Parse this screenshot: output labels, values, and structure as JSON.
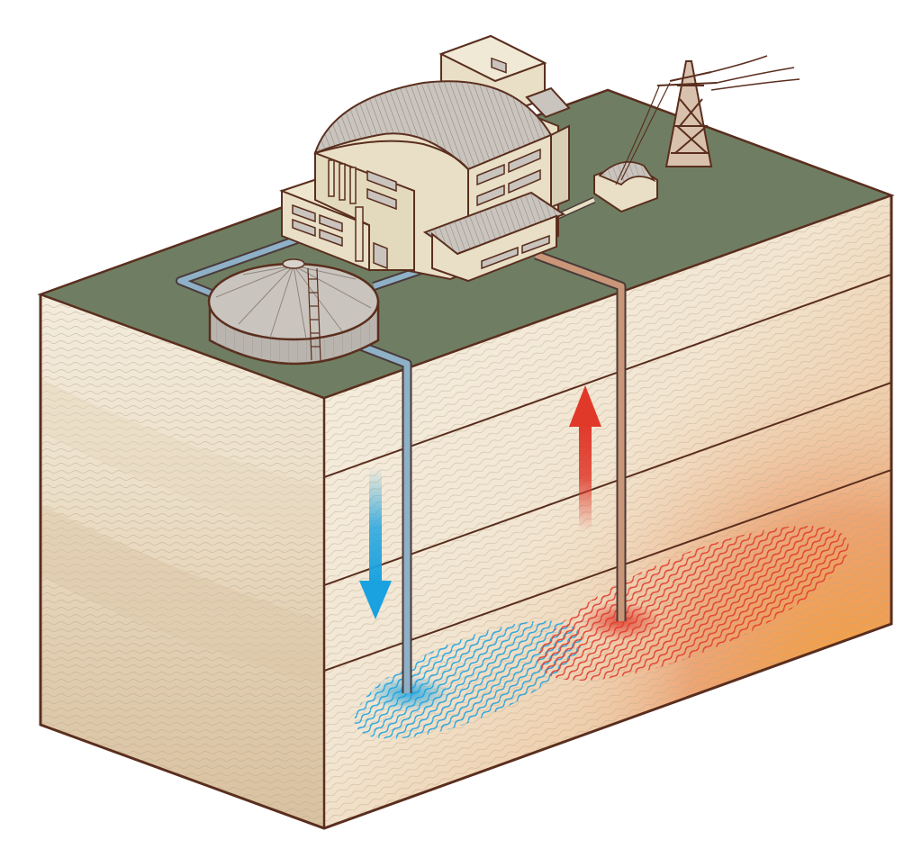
{
  "illustration": {
    "subject": "",
    "components": [
      {
        "id": "ground-surface",
        "icon": "grass-surface-icon"
      },
      {
        "id": "power-plant",
        "icon": "power-plant-icon"
      },
      {
        "id": "storage-tank",
        "icon": "storage-tank-icon"
      },
      {
        "id": "transmission-tower",
        "icon": "transmission-tower-icon"
      },
      {
        "id": "injection-pipe",
        "icon": "cold-water-pipe-icon"
      },
      {
        "id": "production-pipe",
        "icon": "hot-water-pipe-icon"
      },
      {
        "id": "downflow-arrow",
        "icon": "arrow-down-icon"
      },
      {
        "id": "upflow-arrow",
        "icon": "arrow-up-icon"
      },
      {
        "id": "cold-reservoir",
        "icon": "cold-water-zone-icon"
      },
      {
        "id": "hot-reservoir",
        "icon": "hot-water-zone-icon"
      }
    ],
    "colors": {
      "surface": "#6f7e62",
      "outline": "#5a2e1e",
      "building": "#e8dfc6",
      "roof": "#c9c4bd",
      "tank": "#b9b4ae",
      "cold_pipe": "#8fb1c7",
      "hot_pipe": "#c99678",
      "cold_water": "#1aa2e0",
      "hot_water": "#e0392a",
      "rock_light": "#f4ecdd",
      "rock_mid": "#e6d6bd",
      "rock_deep": "#dcc6a6",
      "magma_glow": "#f5a23c"
    }
  }
}
